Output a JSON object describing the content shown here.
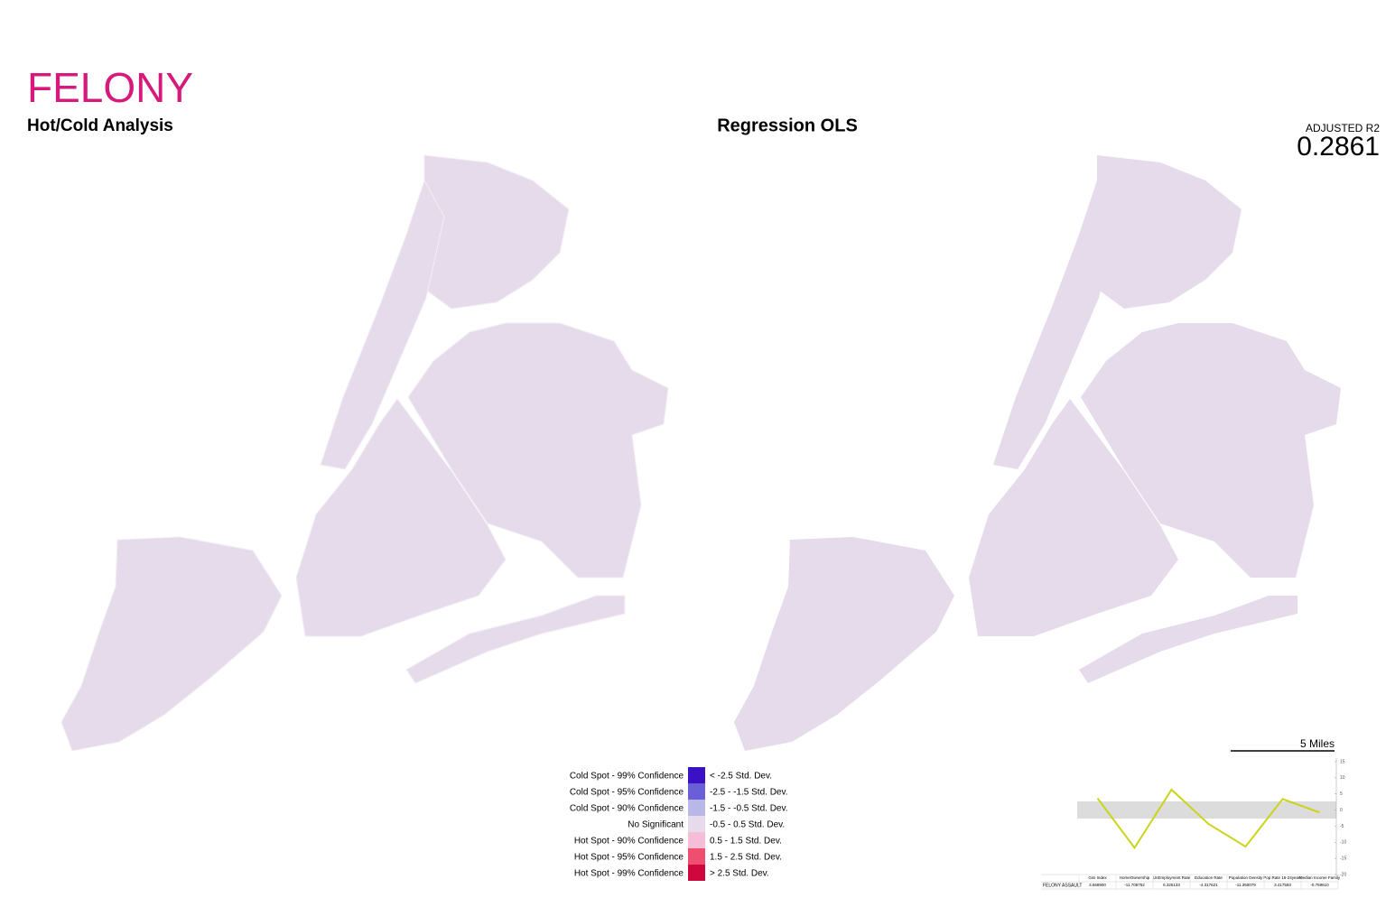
{
  "header": {
    "title": "FELONY",
    "left_subtitle": "Hot/Cold Analysis",
    "right_subtitle": "Regression OLS",
    "r2_label": "ADJUSTED R2",
    "r2_value": 0.2861,
    "scale_label": "5 Miles"
  },
  "legend": [
    {
      "label": "Cold Spot - 99% Confidence",
      "range": "< -2.5 Std. Dev.",
      "color": "#3a12c4"
    },
    {
      "label": "Cold Spot - 95% Confidence",
      "range": "-2.5  -  -1.5 Std. Dev.",
      "color": "#6a5fd6"
    },
    {
      "label": "Cold Spot - 90% Confidence",
      "range": "-1.5  -  -0.5 Std. Dev.",
      "color": "#b9b7e8"
    },
    {
      "label": "No Significant",
      "range": "-0.5  -  0.5 Std. Dev.",
      "color": "#e6dbea"
    },
    {
      "label": "Hot Spot - 90% Confidence",
      "range": "0.5  -  1.5  Std. Dev.",
      "color": "#f6bdd6"
    },
    {
      "label": "Hot Spot - 95% Confidence",
      "range": "1.5  -  2.5  Std. Dev.",
      "color": "#ef4f6e"
    },
    {
      "label": "Hot Spot - 99% Confidence",
      "range": "> 2.5 Std. Dev.",
      "color": "#d0063e"
    }
  ],
  "chart_data": {
    "type": "line",
    "categories": [
      "Gini Index",
      "HomeOwnership",
      "UnEmployment Rate",
      "Education Rate",
      "Population Density",
      "Pop Rate 16-24years",
      "Median Income Family"
    ],
    "series": [
      {
        "name": "FELONY ASSAULT",
        "color": "#c9d41a",
        "values": [
          3.6689,
          -11.708752,
          6.325133,
          -4.317621,
          -11.350079,
          3.417593,
          -0.75961
        ],
        "value_labels": [
          "3.668900",
          "-11.708752",
          "6.325133",
          "-4.317621",
          "-11.350079",
          "3.417593",
          "-0.759610"
        ]
      }
    ],
    "ylim": [
      -20,
      15
    ],
    "yticks": [
      -20,
      -15,
      -10,
      -5,
      0,
      5,
      10,
      15
    ]
  }
}
